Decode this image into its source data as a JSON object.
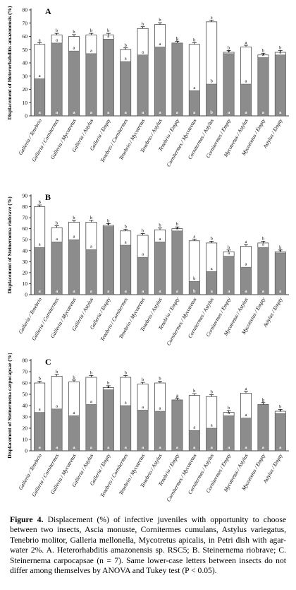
{
  "chart_data": [
    {
      "type": "bar",
      "panel": "A",
      "ylabel": "Displacement of Heterorhabditis amazonensis (%)",
      "ylim": [
        0,
        80
      ],
      "yticks": [
        0,
        10,
        20,
        30,
        40,
        50,
        60,
        70,
        80
      ],
      "categories": [
        "Galleria / Tenebrio",
        "Galleria / Cornitermes",
        "Galleria / Mycotretus",
        "Galleria / Astylus",
        "Galleria / Empty",
        "Tenebrio / Cornitermes",
        "Tenebrio / Mycotretus",
        "Tenebrio / Astylus",
        "Tenebrio / Empty",
        "Cornitermes / Mycotretus",
        "Cornitermes / Astylus",
        "Cornitermes / Empty",
        "Mycotretus / Astylus",
        "Mycotretus / Empty",
        "Astylus / Empty"
      ],
      "series": [
        {
          "values": [
            28,
            55,
            49,
            47,
            58,
            41,
            46,
            52,
            55,
            19,
            24,
            47,
            24,
            44,
            46
          ],
          "letters": [
            "a",
            "a",
            "a",
            "a",
            "a",
            "a",
            "a",
            "a",
            "a",
            "a",
            "b",
            "a",
            "a",
            "a",
            "a"
          ]
        },
        {
          "values": [
            54,
            61,
            60,
            61,
            61,
            50,
            66,
            69,
            55,
            54,
            71,
            48,
            52,
            46,
            48
          ],
          "letters": [
            "a",
            "b",
            "b",
            "b",
            "b",
            "b",
            "b",
            "b",
            "b",
            "b",
            "a",
            "b",
            "a",
            "b",
            "b"
          ]
        }
      ]
    },
    {
      "type": "bar",
      "panel": "B",
      "ylabel": "Displacement of Steinernema riobrave (%)",
      "ylim": [
        0,
        90
      ],
      "yticks": [
        0,
        10,
        20,
        30,
        40,
        50,
        60,
        70,
        80,
        90
      ],
      "categories": [
        "Galleria / Tenebrio",
        "Galleria / Cornitermes",
        "Galleria / Mycotretus",
        "Galleria / Astylus",
        "Galleria / Empty",
        "Tenebrio / Cornitermes",
        "Tenebrio / Mycotretus",
        "Tenebrio / Astylus",
        "Tenebrio / Empty",
        "Cornitermes / Mycotretus",
        "Cornitermes / Astylus",
        "Cornitermes / Empty",
        "Mycotretus / Astylus",
        "Mycotretus / Empty",
        "Astylus / Empty"
      ],
      "series": [
        {
          "values": [
            43,
            48,
            50,
            41,
            62,
            45,
            34,
            48,
            58,
            12,
            21,
            35,
            25,
            43,
            38
          ],
          "letters": [
            "a",
            "a",
            "a",
            "a",
            "a",
            "a",
            "a",
            "a",
            "a",
            "b",
            "a",
            "a",
            "a",
            "a",
            "a"
          ]
        },
        {
          "values": [
            80,
            61,
            66,
            66,
            63,
            58,
            54,
            59,
            60,
            49,
            47,
            39,
            44,
            47,
            39
          ],
          "letters": [
            "b",
            "b",
            "b",
            "b",
            "b",
            "b",
            "b",
            "b",
            "b",
            "a",
            "b",
            "b",
            "a",
            "b",
            "b"
          ]
        }
      ]
    },
    {
      "type": "bar",
      "panel": "C",
      "ylabel": "Displacement of Steinernema carpocapsae (%)",
      "ylim": [
        0,
        80
      ],
      "yticks": [
        0,
        10,
        20,
        30,
        40,
        50,
        60,
        70,
        80
      ],
      "categories": [
        "Galleria / Tenebrio",
        "Galleria / Cornitermes",
        "Galleria / Mycotretus",
        "Galleria / Astylus",
        "Galleria / Empty",
        "Tenebrio / Cornitermes",
        "Tenebrio / Mycotretus",
        "Tenebrio / Astylus",
        "Tenebrio / Empty",
        "Cornitermes / Mycotretus",
        "Cornitermes / Astylus",
        "Cornitermes / Empty",
        "Mycotretus / Astylus",
        "Mycotretus / Empty",
        "Astylus / Empty"
      ],
      "series": [
        {
          "values": [
            34,
            37,
            31,
            41,
            54,
            40,
            36,
            35,
            45,
            18,
            20,
            31,
            29,
            41,
            33
          ],
          "letters": [
            "a",
            "a",
            "a",
            "a",
            "a",
            "a",
            "a",
            "a",
            "a",
            "a",
            "a",
            "a",
            "a",
            "a",
            "a"
          ]
        },
        {
          "values": [
            60,
            66,
            61,
            65,
            56,
            65,
            59,
            60,
            45,
            49,
            48,
            34,
            51,
            41,
            35
          ],
          "letters": [
            "b",
            "b",
            "b",
            "b",
            "b",
            "b",
            "b",
            "b",
            "a",
            "b",
            "b",
            "b",
            "a",
            "b",
            "b"
          ]
        }
      ]
    }
  ],
  "caption": {
    "label": "Figure 4.",
    "text": "Displacement (%) of infective juveniles with opportunity to choose between two insects, Ascia monuste, Cornitermes cumulans, Astylus variegatus, Tenebrio molitor, Galleria mellonella, Mycotretus apicalis, in Petri dish with agar-water 2%. A. Heterorhabditis amazonensis sp. RSC5; B. Steinernema riobrave; C. Steinernema carpocapsae (n = 7). Same lower-case letters between insects do not differ among themselves by ANOVA and Tukey test (P < 0.05)."
  }
}
